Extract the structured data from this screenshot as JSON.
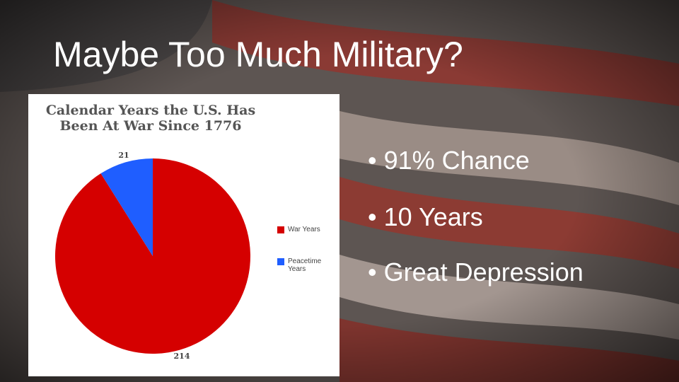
{
  "title": "Maybe Too Much Military?",
  "bullets": [
    "91% Chance",
    "10 Years",
    "Great Depression"
  ],
  "chart_data": {
    "type": "pie",
    "title": "Calendar Years the U.S. Has Been At War Since 1776",
    "series": [
      {
        "name": "War Years",
        "color": "#d50000",
        "values": [
          214
        ]
      },
      {
        "name": "Peacetime Years",
        "color": "#1f5eff",
        "values": [
          21
        ]
      }
    ],
    "legend": "right"
  }
}
